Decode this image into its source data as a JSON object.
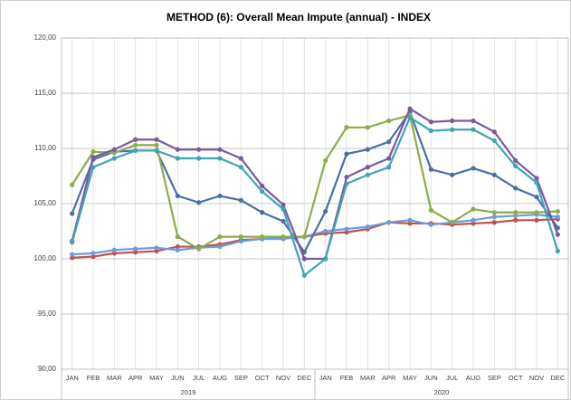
{
  "chart_data": {
    "type": "line",
    "title": "METHOD (6): Overall Mean Impute (annual) - INDEX",
    "categories": [
      "JAN",
      "FEB",
      "MAR",
      "APR",
      "MAY",
      "JUN",
      "JUL",
      "AUG",
      "SEP",
      "OCT",
      "NOV",
      "DEC",
      "JAN",
      "FEB",
      "MAR",
      "APR",
      "MAY",
      "JUN",
      "JUL",
      "AUG",
      "SEP",
      "OCT",
      "NOV",
      "DEC"
    ],
    "groups": [
      "2019",
      "2020"
    ],
    "ylim": [
      90,
      120
    ],
    "yticks": [
      {
        "value": 90,
        "label": "90,00"
      },
      {
        "value": 95,
        "label": "95,00"
      },
      {
        "value": 100,
        "label": "100,00"
      },
      {
        "value": 105,
        "label": "105,00"
      },
      {
        "value": 110,
        "label": "110,00"
      },
      {
        "value": 115,
        "label": "115,00"
      },
      {
        "value": 120,
        "label": "120,00"
      }
    ],
    "grid": true,
    "series": [
      {
        "color": "#c0504d",
        "values": [
          100.1,
          100.2,
          100.5,
          100.6,
          100.7,
          101.1,
          101.1,
          101.3,
          101.7,
          101.8,
          101.9,
          102.0,
          102.3,
          102.4,
          102.7,
          103.3,
          103.2,
          103.2,
          103.1,
          103.2,
          103.3,
          103.5,
          103.5,
          103.6
        ]
      },
      {
        "color": "#6f9bd8",
        "values": [
          100.4,
          100.5,
          100.8,
          100.9,
          101.0,
          100.8,
          101.0,
          101.1,
          101.6,
          101.8,
          101.8,
          102.0,
          102.5,
          102.7,
          102.9,
          103.3,
          103.5,
          103.1,
          103.3,
          103.5,
          103.8,
          103.9,
          104.0,
          103.8
        ]
      },
      {
        "color": "#4a6fa5",
        "values": [
          104.1,
          109.0,
          109.7,
          109.8,
          109.8,
          105.7,
          105.1,
          105.7,
          105.3,
          104.2,
          103.4,
          100.6,
          104.3,
          109.5,
          109.9,
          110.6,
          113.3,
          108.1,
          107.6,
          108.2,
          107.6,
          106.4,
          105.6,
          102.8
        ]
      },
      {
        "color": "#8cac4a",
        "values": [
          106.7,
          109.7,
          109.6,
          110.3,
          110.3,
          102.0,
          100.9,
          102.0,
          102.0,
          102.0,
          102.0,
          102.0,
          108.9,
          111.9,
          111.9,
          112.5,
          113.0,
          104.4,
          103.3,
          104.5,
          104.2,
          104.2,
          104.2,
          104.3
        ]
      },
      {
        "color": "#7a5a9c",
        "values": [
          101.6,
          109.2,
          109.9,
          110.8,
          110.8,
          109.9,
          109.9,
          109.9,
          109.1,
          106.6,
          104.9,
          100.0,
          100.0,
          107.4,
          108.3,
          109.1,
          113.6,
          112.4,
          112.5,
          112.5,
          111.5,
          108.9,
          107.3,
          102.2
        ]
      },
      {
        "color": "#3fa3b8",
        "values": [
          101.5,
          108.3,
          109.1,
          109.8,
          109.8,
          109.1,
          109.1,
          109.1,
          108.3,
          106.1,
          104.5,
          98.5,
          100.0,
          106.8,
          107.6,
          108.3,
          112.8,
          111.6,
          111.7,
          111.7,
          110.7,
          108.4,
          106.9,
          100.7
        ]
      }
    ]
  }
}
